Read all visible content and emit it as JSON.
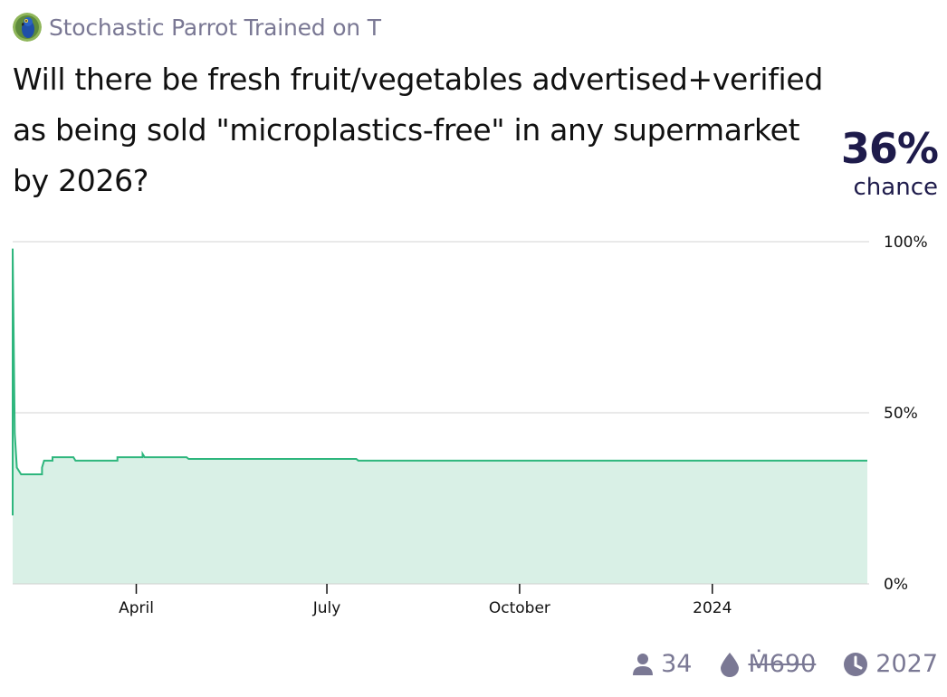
{
  "creator": {
    "name": "Stochastic Parrot Trained on T",
    "avatar_icon": "parrot-avatar-icon"
  },
  "question": {
    "title": "Will there be fresh fruit/vegetables advertised+verified as being sold \"microplastics-free\" in any supermarket by 2026?"
  },
  "probability": {
    "value": "36%",
    "label": "chance"
  },
  "chart_data": {
    "type": "area",
    "x_tick_labels": [
      "April",
      "July",
      "October",
      "2024"
    ],
    "y_tick_labels": [
      "100%",
      "50%",
      "0%"
    ],
    "ylim": [
      0,
      100
    ],
    "xlim": [
      "2023-02-01",
      "2024-03-15"
    ],
    "grid": true,
    "series": [
      {
        "points": [
          [
            "2023-02-01",
            20
          ],
          [
            "2023-02-01",
            98
          ],
          [
            "2023-02-02",
            44
          ],
          [
            "2023-02-03",
            34
          ],
          [
            "2023-02-05",
            32
          ],
          [
            "2023-02-15",
            32
          ],
          [
            "2023-02-15",
            34
          ],
          [
            "2023-02-16",
            36
          ],
          [
            "2023-02-20",
            36
          ],
          [
            "2023-02-20",
            37
          ],
          [
            "2023-03-02",
            37
          ],
          [
            "2023-03-03",
            36
          ],
          [
            "2023-03-23",
            36
          ],
          [
            "2023-03-23",
            37
          ],
          [
            "2023-04-04",
            37
          ],
          [
            "2023-04-04",
            38
          ],
          [
            "2023-04-05",
            37
          ],
          [
            "2023-04-25",
            37
          ],
          [
            "2023-04-26",
            36.5
          ],
          [
            "2023-07-15",
            36.5
          ],
          [
            "2023-07-16",
            36
          ],
          [
            "2024-03-15",
            36
          ]
        ],
        "color": "#2eb67d"
      }
    ]
  },
  "footer": {
    "traders": "34",
    "volume": "Ṁ690",
    "close_year": "2027",
    "traders_icon": "user-icon",
    "volume_icon": "droplet-icon",
    "close_icon": "clock-icon"
  },
  "colors": {
    "line": "#2eb67d",
    "fill": "#d9f0e6",
    "grid": "#e2e2e2",
    "muted": "#7a7894",
    "prob": "#1e1b4b"
  }
}
